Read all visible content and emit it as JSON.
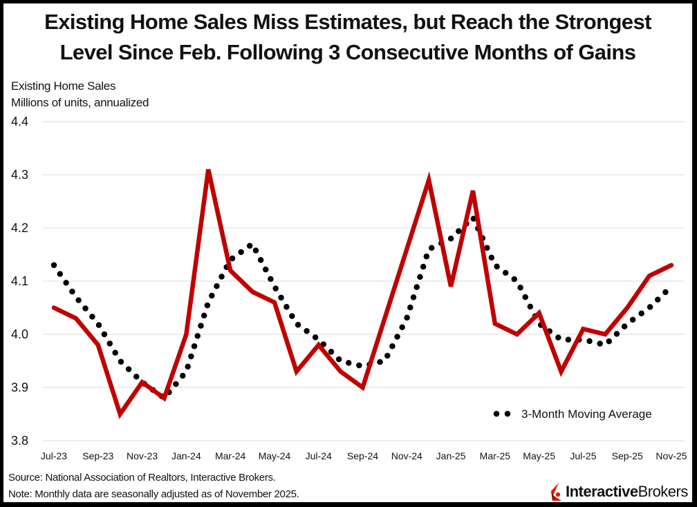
{
  "header": {
    "title_line1": "Existing Home Sales Miss Estimates, but Reach the Strongest",
    "title_line2": "Level Since Feb. Following 3 Consecutive Months of Gains"
  },
  "subtitle": {
    "line1": "Existing Home Sales",
    "line2": "Millions of units, annualized"
  },
  "footer": {
    "source": "Source: National Association of Realtors, Interactive Brokers.",
    "note": "Note: Monthly data are seasonally adjusted as of November 2025."
  },
  "logo": {
    "bold_part": "Interactive",
    "regular_part": "Brokers",
    "brand_color": "#d81e05"
  },
  "colors": {
    "sales_line": "#c00000",
    "moving_average": "#000000",
    "gridline": "#d9d9d9"
  },
  "chart_data": {
    "type": "line",
    "title": "Existing Home Sales Miss Estimates, but Reach the Strongest Level Since Feb. Following 3 Consecutive Months of Gains",
    "xlabel": "",
    "ylabel": "Existing Home Sales, Millions of units, annualized",
    "ylim": [
      3.8,
      4.4
    ],
    "yticks": [
      4.4,
      4.3,
      4.2,
      4.1,
      4.0,
      3.9,
      3.8
    ],
    "ytick_labels": [
      "4.4",
      "4.3",
      "4.2",
      "4.1",
      "4.0",
      "3.9",
      "3.8"
    ],
    "grid": "horizontal",
    "x": [
      "Jul-23",
      "Aug-23",
      "Sep-23",
      "Oct-23",
      "Nov-23",
      "Dec-23",
      "Jan-24",
      "Feb-24",
      "Mar-24",
      "Apr-24",
      "May-24",
      "Jun-24",
      "Jul-24",
      "Aug-24",
      "Sep-24",
      "Oct-24",
      "Nov-24",
      "Dec-24",
      "Jan-25",
      "Feb-25",
      "Mar-25",
      "Apr-25",
      "May-25",
      "Jun-25",
      "Jul-25",
      "Aug-25",
      "Sep-25",
      "Oct-25",
      "Nov-25"
    ],
    "xtick_labels": [
      "Jul-23",
      "Sep-23",
      "Nov-23",
      "Jan-24",
      "Mar-24",
      "May-24",
      "Jul-24",
      "Sep-24",
      "Nov-24",
      "Jan-25",
      "Mar-25",
      "May-25",
      "Jul-25",
      "Sep-25",
      "Nov-25"
    ],
    "series": [
      {
        "name": "Existing Home Sales",
        "style": "solid",
        "color": "#c00000",
        "values": [
          4.05,
          4.03,
          3.98,
          3.85,
          3.91,
          3.88,
          4.0,
          4.31,
          4.12,
          4.08,
          4.06,
          3.93,
          3.98,
          3.93,
          3.9,
          4.03,
          4.16,
          4.29,
          4.09,
          4.27,
          4.02,
          4.0,
          4.04,
          3.93,
          4.01,
          4.0,
          4.05,
          4.11,
          4.13
        ]
      },
      {
        "name": "3-Month Moving Average",
        "style": "dotted",
        "color": "#000000",
        "values": [
          4.13,
          4.07,
          4.02,
          3.95,
          3.91,
          3.88,
          3.93,
          4.06,
          4.14,
          4.17,
          4.09,
          4.02,
          3.99,
          3.95,
          3.94,
          3.95,
          4.03,
          4.16,
          4.18,
          4.22,
          4.13,
          4.1,
          4.02,
          3.99,
          3.99,
          3.98,
          4.02,
          4.05,
          4.09
        ]
      }
    ],
    "legend": {
      "entries": [
        "3-Month Moving Average"
      ],
      "placement": "bottom-right"
    }
  }
}
